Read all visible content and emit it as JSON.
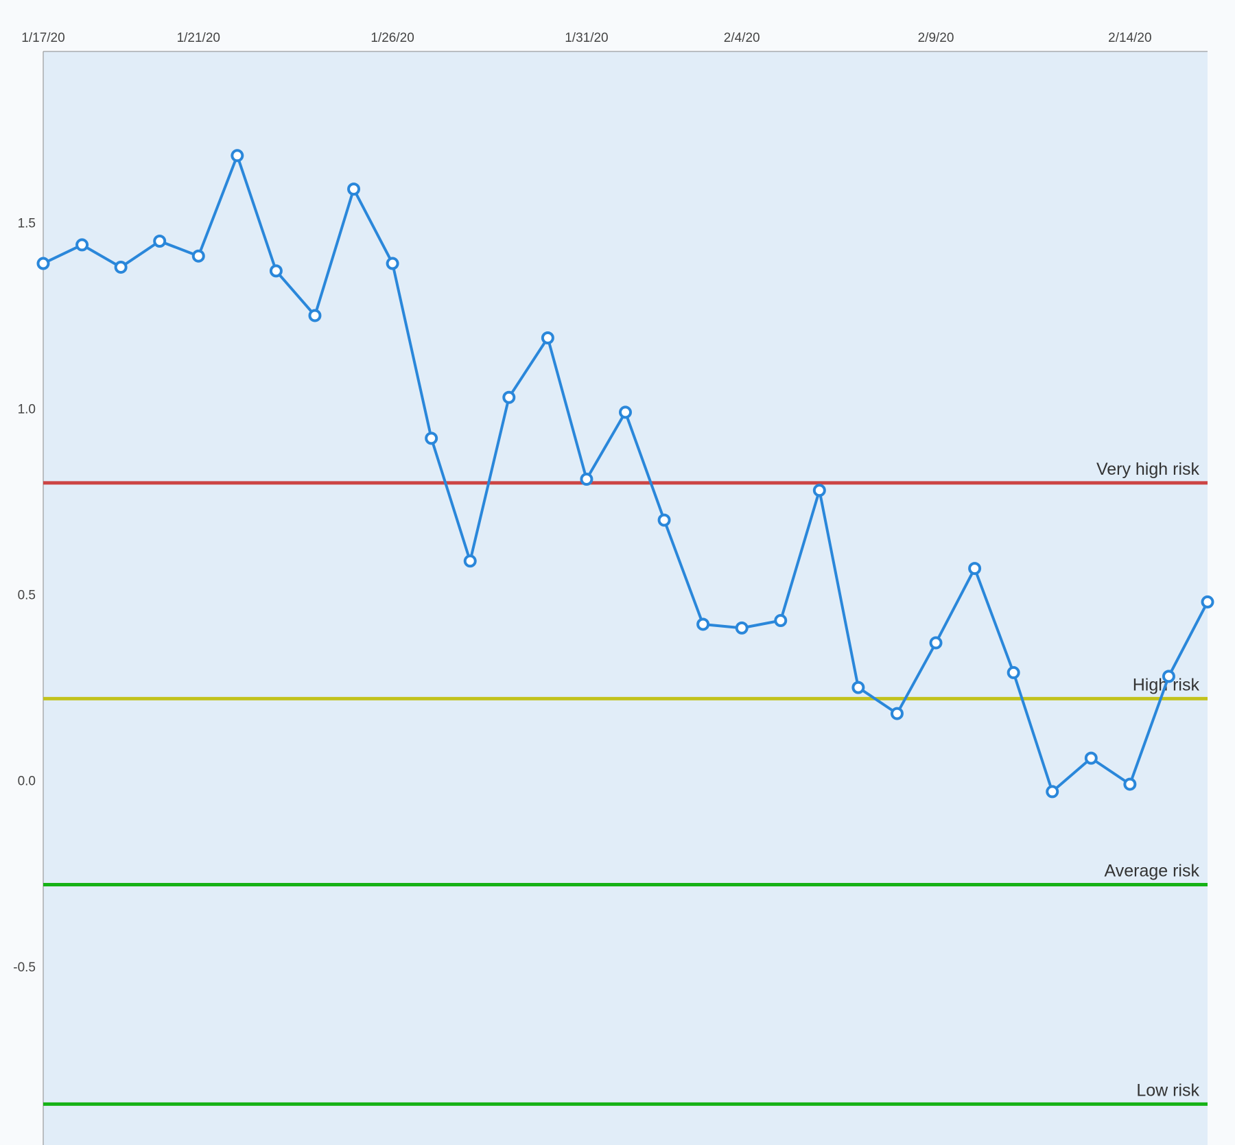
{
  "chart_data": {
    "type": "line",
    "title": "",
    "xlabel": "",
    "ylabel": "",
    "x_tick_labels": [
      "1/17/20",
      "1/21/20",
      "1/26/20",
      "1/31/20",
      "2/4/20",
      "2/9/20",
      "2/14/20"
    ],
    "x_tick_dates": [
      "2020-01-17",
      "2020-01-21",
      "2020-01-26",
      "2020-01-31",
      "2020-02-04",
      "2020-02-09",
      "2020-02-14"
    ],
    "y_tick_labels": [
      "1.5",
      "1.0",
      "0.5",
      "0.0",
      "-0.5"
    ],
    "y_tick_values": [
      1.5,
      1.0,
      0.5,
      0.0,
      -0.5
    ],
    "xlim": [
      "2020-01-17",
      "2020-02-16"
    ],
    "ylim": [
      -0.98,
      1.96
    ],
    "grid": false,
    "plot_background": "#e1edf8",
    "series": [
      {
        "color": "#2a87da",
        "marker_fill": "#ffffff",
        "x": [
          "2020-01-17",
          "2020-01-18",
          "2020-01-19",
          "2020-01-20",
          "2020-01-21",
          "2020-01-22",
          "2020-01-23",
          "2020-01-24",
          "2020-01-25",
          "2020-01-26",
          "2020-01-27",
          "2020-01-28",
          "2020-01-29",
          "2020-01-30",
          "2020-01-31",
          "2020-02-01",
          "2020-02-02",
          "2020-02-03",
          "2020-02-04",
          "2020-02-05",
          "2020-02-06",
          "2020-02-07",
          "2020-02-08",
          "2020-02-09",
          "2020-02-10",
          "2020-02-11",
          "2020-02-12",
          "2020-02-13",
          "2020-02-14",
          "2020-02-15",
          "2020-02-16"
        ],
        "values": [
          1.39,
          1.44,
          1.38,
          1.45,
          1.41,
          1.68,
          1.37,
          1.25,
          1.59,
          1.39,
          0.92,
          0.59,
          1.03,
          1.19,
          0.81,
          0.99,
          0.7,
          0.42,
          0.41,
          0.43,
          0.78,
          0.25,
          0.18,
          0.37,
          0.57,
          0.29,
          -0.03,
          0.06,
          -0.01,
          0.28,
          0.48
        ]
      }
    ],
    "reference_lines": [
      {
        "label": "Very high risk",
        "value": 0.8,
        "color": "#cc4444"
      },
      {
        "label": "High risk",
        "value": 0.22,
        "color": "#c2c21d"
      },
      {
        "label": "Average risk",
        "value": -0.28,
        "color": "#16b216"
      },
      {
        "label": "Low risk",
        "value": -0.87,
        "color": "#16b216"
      }
    ]
  }
}
